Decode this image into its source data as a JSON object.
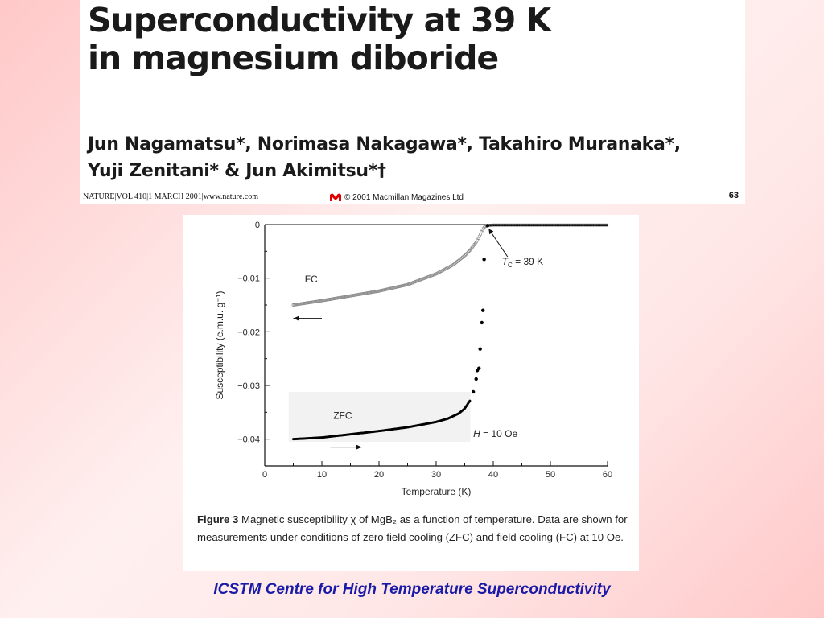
{
  "paper": {
    "title_lines": [
      "Superconductivity at 39 K",
      "in magnesium diboride"
    ],
    "authors_lines": [
      "Jun Nagamatsu*, Norimasa Nakagawa*, Takahiro Muranaka*,",
      "Yuji Zenitani* & Jun Akimitsu*†"
    ],
    "journal_citation": "NATURE|VOL 410|1 MARCH 2001|www.nature.com",
    "copyright": "© 2001 Macmillan Magazines Ltd",
    "page_number": "63"
  },
  "chart_data": {
    "type": "scatter",
    "xlabel": "Temperature (K)",
    "ylabel": "Susceptibility (e.m.u. g⁻¹)",
    "xlim": [
      0,
      60
    ],
    "ylim": [
      -0.045,
      0.0
    ],
    "x_ticks": [
      0,
      10,
      20,
      30,
      40,
      50,
      60
    ],
    "y_ticks": [
      0,
      -0.01,
      -0.02,
      -0.03,
      -0.04
    ],
    "x_tick_labels": [
      "0",
      "10",
      "20",
      "30",
      "40",
      "50",
      "60"
    ],
    "y_tick_labels": [
      "0",
      "−0.01",
      "−0.02",
      "−0.03",
      "−0.04"
    ],
    "series": [
      {
        "name": "FC",
        "x": [
          5,
          10,
          15,
          20,
          25,
          30,
          33,
          35,
          36,
          37,
          37.5,
          38,
          38.5,
          39,
          40,
          45,
          50,
          55,
          60
        ],
        "y": [
          -0.015,
          -0.0142,
          -0.0133,
          -0.0124,
          -0.0112,
          -0.0092,
          -0.0075,
          -0.0058,
          -0.0047,
          -0.0033,
          -0.0024,
          -0.0012,
          -0.0004,
          -0.0002,
          -0.0001,
          -0.0001,
          -0.0001,
          -0.0001,
          -0.0001
        ]
      },
      {
        "name": "ZFC",
        "x": [
          5,
          10,
          15,
          20,
          25,
          30,
          32,
          34,
          35,
          36,
          36.5,
          37,
          37.2,
          37.5,
          37.7,
          38,
          38.2,
          38.4,
          39,
          40,
          45,
          50,
          55,
          60
        ],
        "y": [
          -0.04,
          -0.0397,
          -0.0391,
          -0.0385,
          -0.0378,
          -0.0368,
          -0.0362,
          -0.0352,
          -0.0343,
          -0.0327,
          -0.0312,
          -0.0288,
          -0.0272,
          -0.0268,
          -0.0232,
          -0.0183,
          -0.016,
          -0.0065,
          -0.0002,
          -0.0001,
          -0.0001,
          -0.0001,
          -0.0001,
          -0.0001
        ]
      }
    ],
    "annotations": {
      "fc_label": "FC",
      "zfc_label": "ZFC",
      "tc_label": "T",
      "tc_sub": "C",
      "tc_value": " = 39 K",
      "field_label": "H",
      "field_value": " = 10 Oe"
    }
  },
  "caption": {
    "figure_label": "Figure 3",
    "text": " Magnetic susceptibility χ of MgB₂ as a function of temperature. Data are shown for measurements under conditions of zero field cooling (ZFC) and field cooling (FC) at 10 Oe."
  },
  "footer": {
    "text": "ICSTM Centre for High Temperature Superconductivity"
  },
  "colors": {
    "background": "#ffc8c8",
    "footer_text": "#1a1aa8",
    "fc_marker": "#8a8a8a",
    "zfc_marker": "#000000",
    "publisher_logo": "#e00000"
  }
}
